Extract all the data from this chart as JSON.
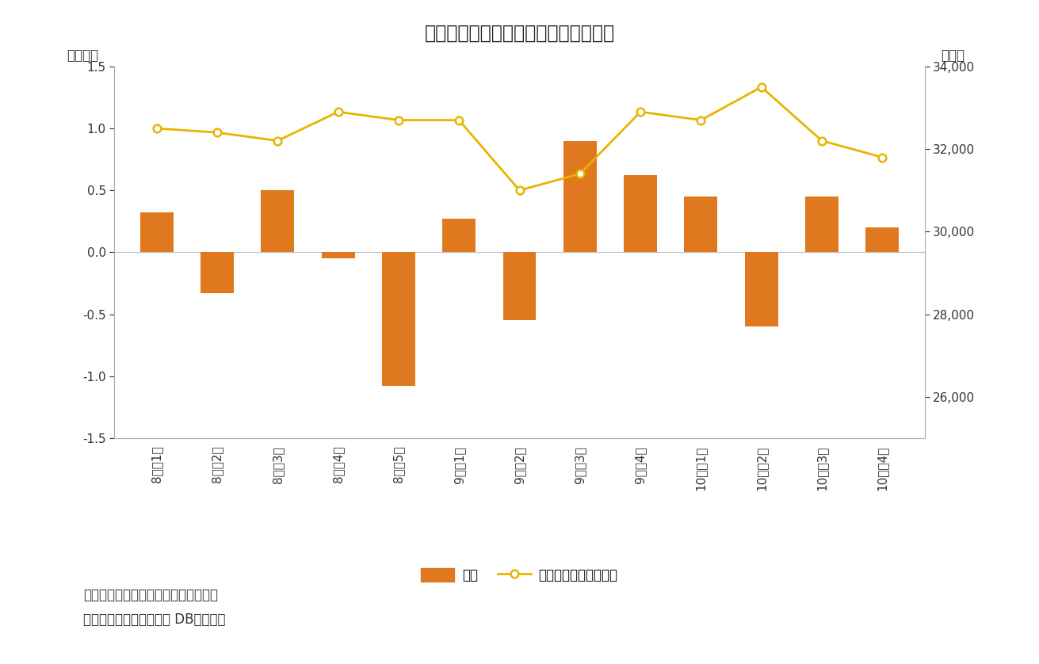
{
  "title": "図表３　個人は２カ月連続の買い越し",
  "categories": [
    "8月第1週",
    "8月第2週",
    "8月第3週",
    "8月第4週",
    "8月第5週",
    "9月第1週",
    "9月第2週",
    "9月第3週",
    "9月第4週",
    "10月第1週",
    "10月第2週",
    "10月第3週",
    "10月第4週"
  ],
  "bar_values": [
    0.32,
    -0.33,
    0.5,
    -0.05,
    -1.08,
    0.27,
    -0.55,
    0.9,
    0.62,
    0.45,
    -0.6,
    0.45,
    0.2
  ],
  "line_values": [
    32500,
    32400,
    32200,
    32900,
    32700,
    32700,
    31000,
    31400,
    32900,
    32700,
    33500,
    32200,
    31800
  ],
  "bar_color": "#E07820",
  "line_color": "#E8B400",
  "line_marker_facecolor": "#ffffff",
  "line_marker_edgecolor": "#E8B400",
  "left_ylabel": "（兆円）",
  "right_ylabel": "（円）",
  "ylim_left": [
    -1.5,
    1.5
  ],
  "ylim_right": [
    25000,
    34000
  ],
  "yticks_left": [
    -1.5,
    -1.0,
    -0.5,
    0.0,
    0.5,
    1.0,
    1.5
  ],
  "yticks_right": [
    26000,
    28000,
    30000,
    32000,
    34000
  ],
  "legend_bar": "個人",
  "legend_line": "日経平均株価（右軸）",
  "note1": "（注）個人の現物と先物の合計、週次",
  "note2": "（資料）ニッセイ基礎研 DBから作成",
  "background_color": "#ffffff",
  "title_fontsize": 17,
  "axis_label_fontsize": 12,
  "tick_fontsize": 11,
  "legend_fontsize": 12,
  "note_fontsize": 12
}
